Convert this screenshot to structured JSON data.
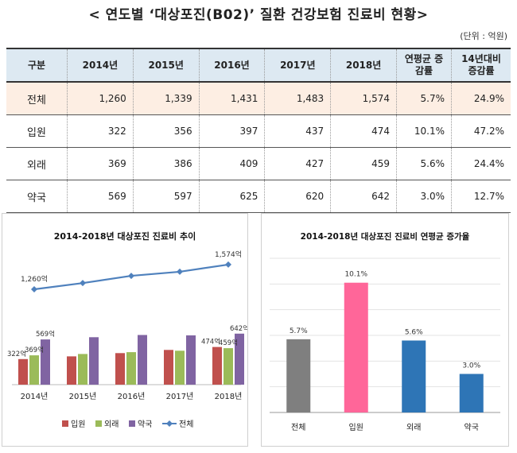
{
  "title": "< 연도별 ‘대상포진(B02)’ 질환 건강보험 진료비 현황>",
  "unit": "(단위 : 억원)",
  "table": {
    "headers": [
      "구분",
      "2014년",
      "2015년",
      "2016년",
      "2017년",
      "2018년",
      "연평균 증감률",
      "14년대비 증감률"
    ],
    "rows": [
      {
        "label": "전체",
        "values": [
          "1,260",
          "1,339",
          "1,431",
          "1,483",
          "1,574"
        ],
        "avg": "5.7%",
        "vs14": "24.9%"
      },
      {
        "label": "입원",
        "values": [
          "322",
          "356",
          "397",
          "437",
          "474"
        ],
        "avg": "10.1%",
        "vs14": "47.2%"
      },
      {
        "label": "외래",
        "values": [
          "369",
          "386",
          "409",
          "427",
          "459"
        ],
        "avg": "5.6%",
        "vs14": "24.4%"
      },
      {
        "label": "약국",
        "values": [
          "569",
          "597",
          "625",
          "620",
          "642"
        ],
        "avg": "3.0%",
        "vs14": "12.7%"
      }
    ]
  },
  "chart_data": [
    {
      "type": "bar",
      "title": "2014-2018년 대상포진 진료비 추이",
      "categories": [
        "2014년",
        "2015년",
        "2016년",
        "2017년",
        "2018년"
      ],
      "series": [
        {
          "name": "입원",
          "values": [
            322,
            356,
            397,
            437,
            474
          ],
          "color": "#c0504d"
        },
        {
          "name": "외래",
          "values": [
            369,
            386,
            409,
            427,
            459
          ],
          "color": "#9bbb59"
        },
        {
          "name": "약국",
          "values": [
            569,
            597,
            625,
            620,
            642
          ],
          "color": "#8064a2"
        }
      ],
      "line_series": {
        "name": "전체",
        "values": [
          1260,
          1339,
          1431,
          1483,
          1574
        ],
        "color": "#4f81bd"
      },
      "bar_labels": [
        {
          "series": 0,
          "index": 0,
          "text": "322억"
        },
        {
          "series": 1,
          "index": 0,
          "text": "369억"
        },
        {
          "series": 2,
          "index": 0,
          "text": "569억"
        },
        {
          "series": 0,
          "index": 4,
          "text": "474억"
        },
        {
          "series": 1,
          "index": 4,
          "text": "459억"
        },
        {
          "series": 2,
          "index": 4,
          "text": "642억"
        }
      ],
      "line_labels": [
        {
          "index": 0,
          "text": "1,260억"
        },
        {
          "index": 4,
          "text": "1,574억"
        }
      ],
      "legend_position": "bottom",
      "grid": false
    },
    {
      "type": "bar",
      "title": "2014-2018년 대상포진 진료비 연평균 증가율",
      "categories": [
        "전체",
        "입원",
        "외래",
        "약국"
      ],
      "values": [
        5.7,
        10.1,
        5.6,
        3.0
      ],
      "labels": [
        "5.7%",
        "10.1%",
        "5.6%",
        "3.0%"
      ],
      "colors": [
        "#7f7f7f",
        "#ff6699",
        "#2e75b6",
        "#2e75b6"
      ],
      "ylim": [
        0,
        12
      ],
      "grid": true
    }
  ]
}
